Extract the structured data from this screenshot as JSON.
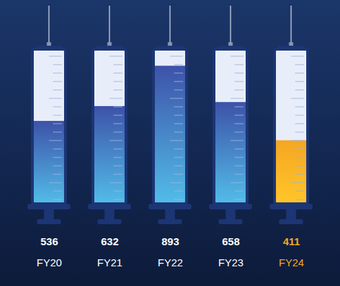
{
  "chart_data": {
    "type": "bar",
    "categories": [
      "FY20",
      "FY21",
      "FY22",
      "FY23",
      "FY24"
    ],
    "values": [
      536,
      632,
      893,
      658,
      411
    ],
    "colors": [
      "#3d52a8",
      "#3d52a8",
      "#3d52a8",
      "#3d52a8",
      "#f5a623"
    ],
    "ylim": [
      0,
      1000
    ],
    "yticks": [],
    "grid": false,
    "tick_labels": false,
    "data_labels": true
  }
}
